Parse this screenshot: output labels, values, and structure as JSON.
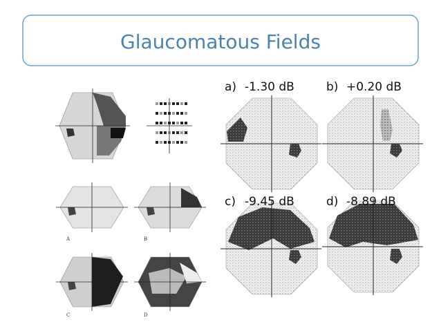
{
  "header": {
    "title": "Glaucomatous Fields"
  },
  "panels": [
    {
      "label": "a)",
      "value": "-1.30 dB"
    },
    {
      "label": "b)",
      "value": "+0.20 dB"
    },
    {
      "label": "c)",
      "value": "-9.45 dB"
    },
    {
      "label": "d)",
      "value": "-8.89 dB"
    }
  ],
  "figure_labels": [
    "A",
    "B",
    "C",
    "D"
  ]
}
